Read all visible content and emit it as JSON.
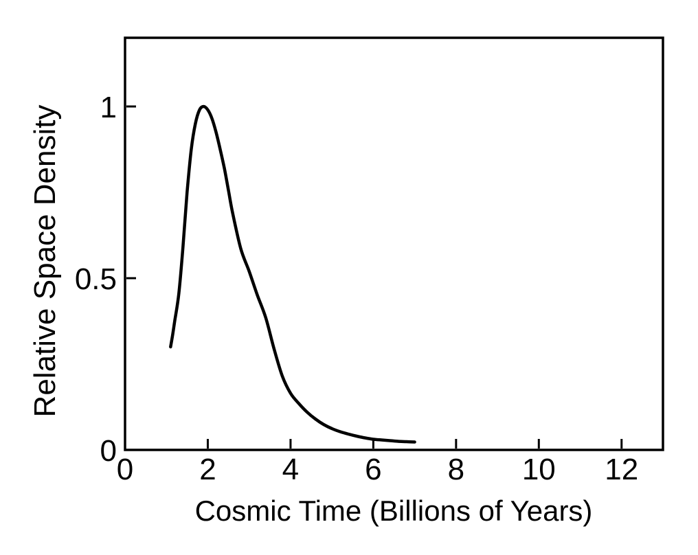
{
  "figure": {
    "background": "#ffffff",
    "ink_color": "#000000"
  },
  "chart_data": {
    "type": "line",
    "title": "",
    "xlabel": "Cosmic Time (Billions of Years)",
    "ylabel": "Relative Space Density",
    "xlim": [
      0,
      13
    ],
    "ylim": [
      0,
      1.2
    ],
    "x_ticks": {
      "values": [
        0,
        2,
        4,
        6,
        8,
        10,
        12
      ],
      "labels": [
        "0",
        "2",
        "4",
        "6",
        "8",
        "10",
        "12"
      ]
    },
    "y_ticks": {
      "values": [
        0,
        0.5,
        1
      ],
      "labels": [
        "0",
        "0.5",
        "1"
      ]
    },
    "grid": false,
    "legend": "none",
    "series": [
      {
        "name": "relative-space-density-curve",
        "color": "#000000",
        "stroke_width": 4.5,
        "points": [
          [
            1.1,
            0.3
          ],
          [
            1.15,
            0.335
          ],
          [
            1.2,
            0.375
          ],
          [
            1.3,
            0.455
          ],
          [
            1.4,
            0.59
          ],
          [
            1.5,
            0.75
          ],
          [
            1.6,
            0.875
          ],
          [
            1.7,
            0.95
          ],
          [
            1.8,
            0.99
          ],
          [
            1.9,
            1.0
          ],
          [
            2.0,
            0.99
          ],
          [
            2.1,
            0.965
          ],
          [
            2.2,
            0.925
          ],
          [
            2.3,
            0.875
          ],
          [
            2.4,
            0.82
          ],
          [
            2.5,
            0.755
          ],
          [
            2.6,
            0.69
          ],
          [
            2.8,
            0.585
          ],
          [
            3.0,
            0.52
          ],
          [
            3.2,
            0.45
          ],
          [
            3.4,
            0.385
          ],
          [
            3.6,
            0.295
          ],
          [
            3.8,
            0.215
          ],
          [
            4.0,
            0.165
          ],
          [
            4.2,
            0.135
          ],
          [
            4.4,
            0.11
          ],
          [
            4.6,
            0.09
          ],
          [
            4.8,
            0.074
          ],
          [
            5.0,
            0.062
          ],
          [
            5.2,
            0.053
          ],
          [
            5.4,
            0.046
          ],
          [
            5.6,
            0.04
          ],
          [
            5.8,
            0.035
          ],
          [
            6.0,
            0.031
          ],
          [
            6.2,
            0.029
          ],
          [
            6.4,
            0.027
          ],
          [
            6.6,
            0.025
          ],
          [
            6.8,
            0.024
          ],
          [
            7.0,
            0.023
          ]
        ]
      }
    ]
  }
}
